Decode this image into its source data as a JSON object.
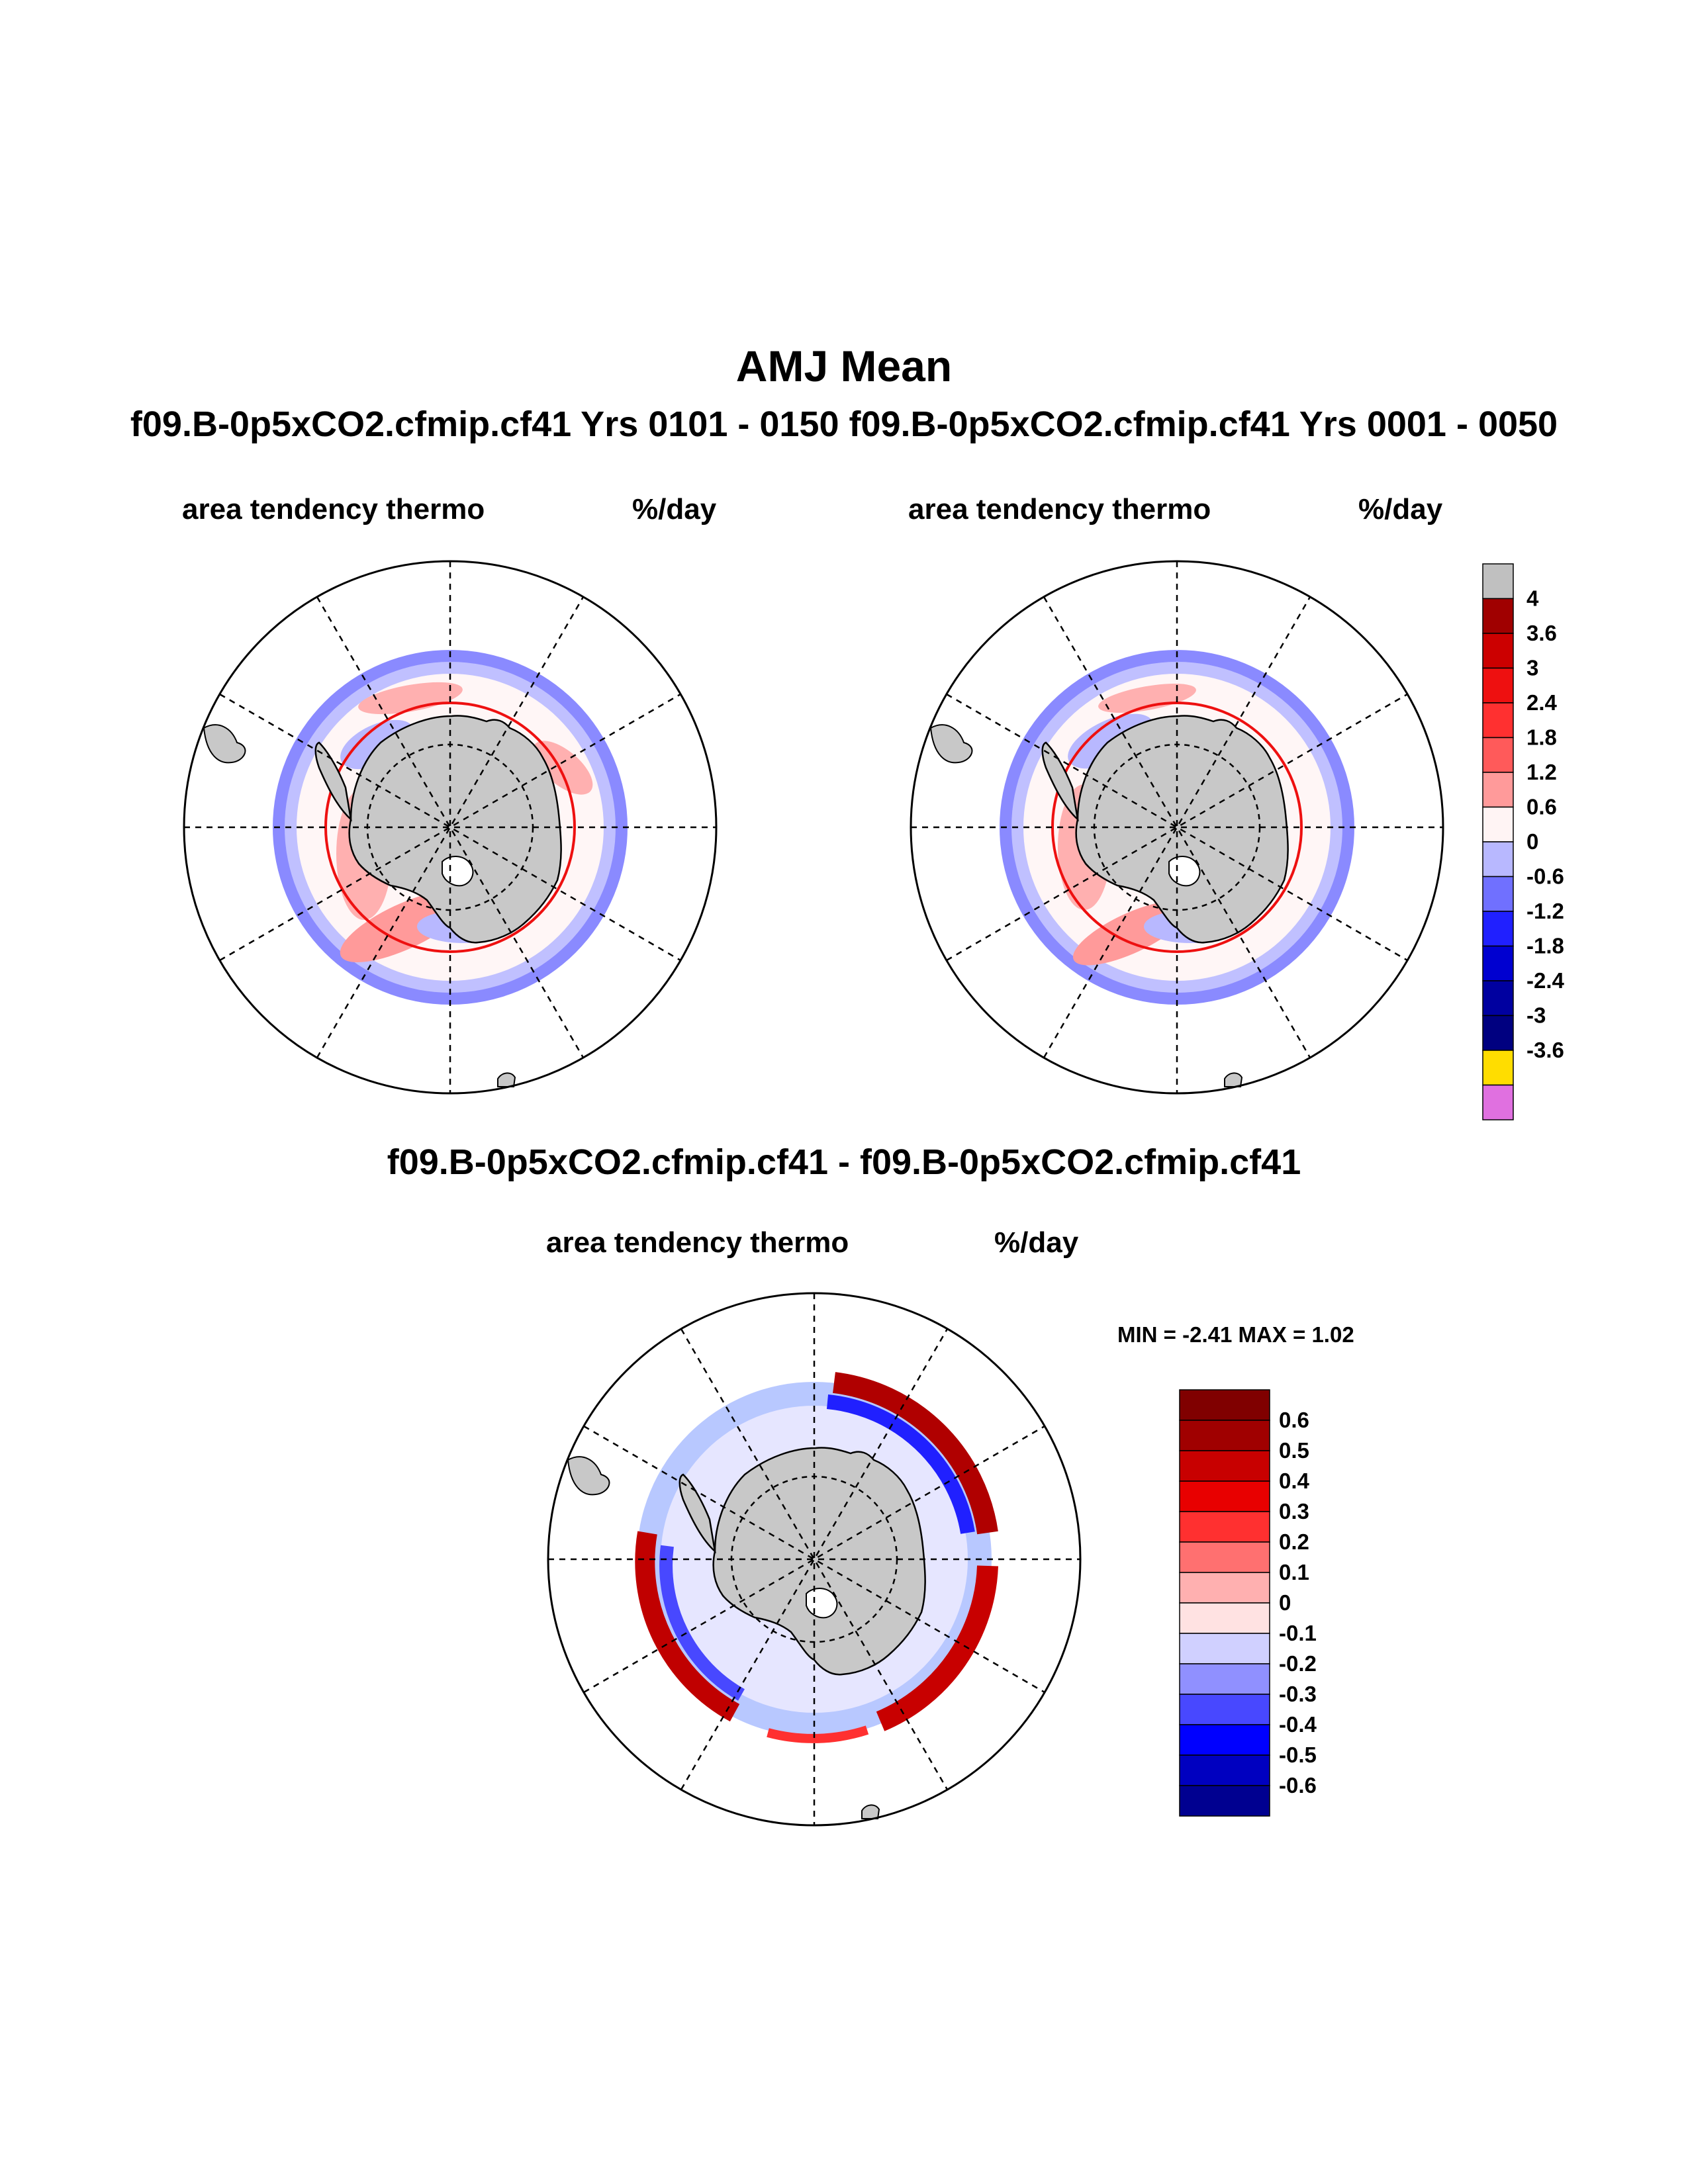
{
  "title": "AMJ Mean",
  "subtitle": "f09.B-0p5xCO2.cfmip.cf41  Yrs 0101 - 0150 f09.B-0p5xCO2.cfmip.cf41  Yrs 0001 - 0050",
  "panels": [
    {
      "variable": "area tendency thermo",
      "units": "%/day"
    },
    {
      "variable": "area tendency thermo",
      "units": "%/day"
    }
  ],
  "diff_title": "f09.B-0p5xCO2.cfmip.cf41 - f09.B-0p5xCO2.cfmip.cf41",
  "diff_panel": {
    "variable": "area tendency thermo",
    "units": "%/day",
    "min_label": "MIN =",
    "min_value": "-2.41",
    "max_label": "MAX =",
    "max_value": "1.02"
  },
  "legend_top": {
    "labels": [
      "4",
      "3.6",
      "3",
      "2.4",
      "1.8",
      "1.2",
      "0.6",
      "0",
      "-0.6",
      "-1.2",
      "-1.8",
      "-2.4",
      "-3",
      "-3.6"
    ],
    "colors": [
      "#c0c0c0",
      "#a00000",
      "#cc0000",
      "#ee1010",
      "#ff3030",
      "#ff5a5a",
      "#ff9a9a",
      "#fff4f4",
      "#b8b8ff",
      "#7070ff",
      "#2020ff",
      "#0000d0",
      "#0000a0",
      "#000080",
      "#ffdd00",
      "#e070e0"
    ]
  },
  "legend_diff": {
    "labels": [
      "0.6",
      "0.5",
      "0.4",
      "0.3",
      "0.2",
      "0.1",
      "0",
      "-0.1",
      "-0.2",
      "-0.3",
      "-0.4",
      "-0.5",
      "-0.6"
    ],
    "colors": [
      "#800000",
      "#a00000",
      "#c80000",
      "#e80000",
      "#ff3030",
      "#ff7070",
      "#ffb0b0",
      "#ffe2e2",
      "#d0d0ff",
      "#9090ff",
      "#4848ff",
      "#0000ff",
      "#0000c0",
      "#000090"
    ]
  }
}
